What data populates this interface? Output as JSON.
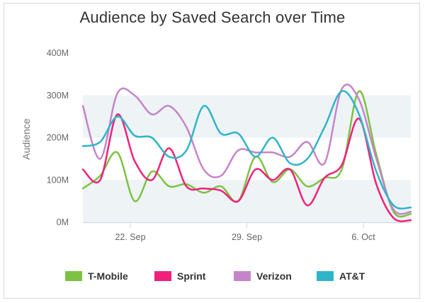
{
  "chart_data": {
    "type": "line",
    "title": "Audience by Saved Search over Time",
    "xlabel": "",
    "ylabel": "Audience",
    "x_range": [
      0,
      19
    ],
    "ylim": [
      0,
      400
    ],
    "y_ticks": [
      {
        "value": 0,
        "label": "0M"
      },
      {
        "value": 100,
        "label": "100M"
      },
      {
        "value": 200,
        "label": "200M"
      },
      {
        "value": 300,
        "label": "300M"
      },
      {
        "value": 400,
        "label": "400M"
      }
    ],
    "x_ticks": [
      {
        "x": 2.75,
        "label": "22. Sep"
      },
      {
        "x": 9.5,
        "label": "29. Sep"
      },
      {
        "x": 16.25,
        "label": "6. Oct"
      }
    ],
    "bands": [
      [
        0,
        100
      ],
      [
        200,
        300
      ]
    ],
    "x": [
      0,
      1,
      2,
      3,
      4,
      5,
      6,
      7,
      8,
      9,
      10,
      11,
      12,
      13,
      14,
      15,
      16,
      17,
      18,
      19
    ],
    "series": [
      {
        "name": "T-Mobile",
        "color": "#7dc242",
        "values": [
          80,
          110,
          165,
          50,
          120,
          85,
          90,
          70,
          85,
          50,
          155,
          95,
          125,
          85,
          105,
          125,
          310,
          160,
          25,
          20
        ]
      },
      {
        "name": "Sprint",
        "color": "#f0217a",
        "values": [
          125,
          100,
          255,
          145,
          100,
          175,
          85,
          80,
          75,
          50,
          125,
          100,
          125,
          40,
          105,
          135,
          245,
          90,
          10,
          5
        ]
      },
      {
        "name": "Verizon",
        "color": "#c584c9",
        "values": [
          275,
          150,
          305,
          300,
          255,
          275,
          225,
          125,
          110,
          170,
          165,
          165,
          155,
          190,
          140,
          315,
          290,
          150,
          30,
          25
        ]
      },
      {
        "name": "AT&T",
        "color": "#2eb5c7",
        "values": [
          180,
          190,
          250,
          205,
          200,
          155,
          170,
          275,
          210,
          210,
          155,
          200,
          140,
          150,
          225,
          310,
          255,
          120,
          40,
          35
        ]
      }
    ]
  }
}
